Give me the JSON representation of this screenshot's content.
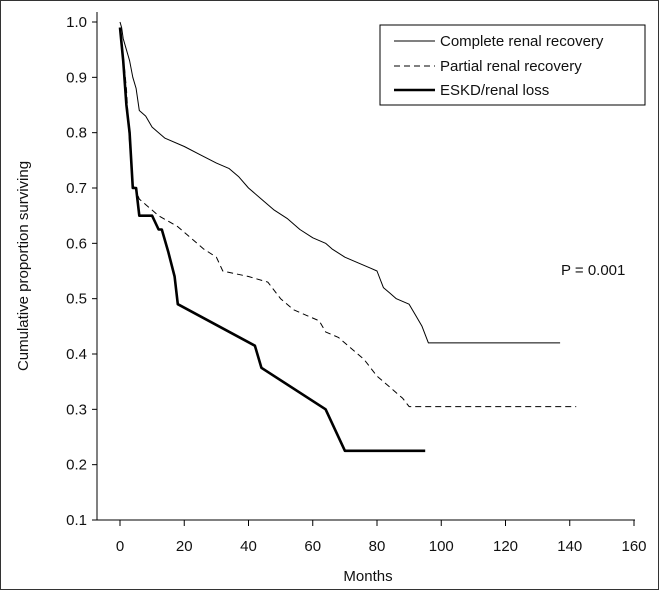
{
  "chart_data": {
    "type": "line",
    "title": "",
    "xlabel": "Months",
    "ylabel": "Cumulative proportion surviving",
    "xlim": [
      -10,
      160
    ],
    "ylim": [
      0.1,
      1.05
    ],
    "x_ticks": [
      0,
      20,
      40,
      60,
      80,
      100,
      120,
      140,
      160
    ],
    "y_ticks": [
      0.1,
      0.2,
      0.3,
      0.4,
      0.5,
      0.6,
      0.7,
      0.8,
      0.9,
      1.0
    ],
    "y_tick_labels": [
      "0.1",
      "0.2",
      "0.3",
      "0.4",
      "0.5",
      "0.6",
      "0.7",
      "0.8",
      "0.9",
      "1.0"
    ],
    "grid": false,
    "legend_position": "top-right",
    "annotation": "P = 0.001",
    "series": [
      {
        "name": "Complete renal recovery",
        "style": "solid",
        "width": 1,
        "color": "#000000",
        "points": [
          [
            0,
            1.0
          ],
          [
            0.5,
            0.99
          ],
          [
            1,
            0.97
          ],
          [
            2,
            0.95
          ],
          [
            3,
            0.93
          ],
          [
            4,
            0.9
          ],
          [
            5,
            0.88
          ],
          [
            6,
            0.84
          ],
          [
            8,
            0.83
          ],
          [
            10,
            0.81
          ],
          [
            12,
            0.8
          ],
          [
            14,
            0.79
          ],
          [
            20,
            0.775
          ],
          [
            25,
            0.76
          ],
          [
            30,
            0.745
          ],
          [
            34,
            0.735
          ],
          [
            37,
            0.72
          ],
          [
            40,
            0.7
          ],
          [
            44,
            0.68
          ],
          [
            48,
            0.66
          ],
          [
            52,
            0.645
          ],
          [
            56,
            0.625
          ],
          [
            60,
            0.61
          ],
          [
            64,
            0.6
          ],
          [
            66,
            0.59
          ],
          [
            70,
            0.575
          ],
          [
            74,
            0.565
          ],
          [
            78,
            0.555
          ],
          [
            80,
            0.55
          ],
          [
            82,
            0.52
          ],
          [
            84,
            0.51
          ],
          [
            86,
            0.5
          ],
          [
            88,
            0.495
          ],
          [
            90,
            0.49
          ],
          [
            92,
            0.47
          ],
          [
            94,
            0.45
          ],
          [
            96,
            0.42
          ],
          [
            110,
            0.42
          ],
          [
            137,
            0.42
          ]
        ]
      },
      {
        "name": "Partial renal recovery",
        "style": "dashed",
        "width": 1,
        "color": "#000000",
        "points": [
          [
            0,
            0.99
          ],
          [
            1,
            0.94
          ],
          [
            2,
            0.88
          ],
          [
            3,
            0.78
          ],
          [
            4,
            0.71
          ],
          [
            6,
            0.68
          ],
          [
            8,
            0.67
          ],
          [
            12,
            0.65
          ],
          [
            18,
            0.63
          ],
          [
            22,
            0.61
          ],
          [
            26,
            0.59
          ],
          [
            30,
            0.575
          ],
          [
            32,
            0.55
          ],
          [
            36,
            0.545
          ],
          [
            40,
            0.54
          ],
          [
            46,
            0.53
          ],
          [
            50,
            0.5
          ],
          [
            54,
            0.48
          ],
          [
            58,
            0.47
          ],
          [
            62,
            0.46
          ],
          [
            64,
            0.44
          ],
          [
            68,
            0.43
          ],
          [
            72,
            0.41
          ],
          [
            74,
            0.4
          ],
          [
            76,
            0.39
          ],
          [
            80,
            0.36
          ],
          [
            84,
            0.34
          ],
          [
            88,
            0.32
          ],
          [
            90,
            0.305
          ],
          [
            110,
            0.305
          ],
          [
            142,
            0.305
          ]
        ]
      },
      {
        "name": "ESKD/renal loss",
        "style": "solid",
        "width": 2.6,
        "color": "#000000",
        "points": [
          [
            0,
            0.99
          ],
          [
            1,
            0.93
          ],
          [
            2,
            0.85
          ],
          [
            3,
            0.8
          ],
          [
            4,
            0.7
          ],
          [
            5,
            0.7
          ],
          [
            6,
            0.65
          ],
          [
            10,
            0.65
          ],
          [
            12,
            0.625
          ],
          [
            13,
            0.625
          ],
          [
            15,
            0.585
          ],
          [
            17,
            0.54
          ],
          [
            18,
            0.49
          ],
          [
            42,
            0.415
          ],
          [
            44,
            0.375
          ],
          [
            64,
            0.3
          ],
          [
            70,
            0.225
          ],
          [
            95,
            0.225
          ]
        ]
      }
    ]
  }
}
